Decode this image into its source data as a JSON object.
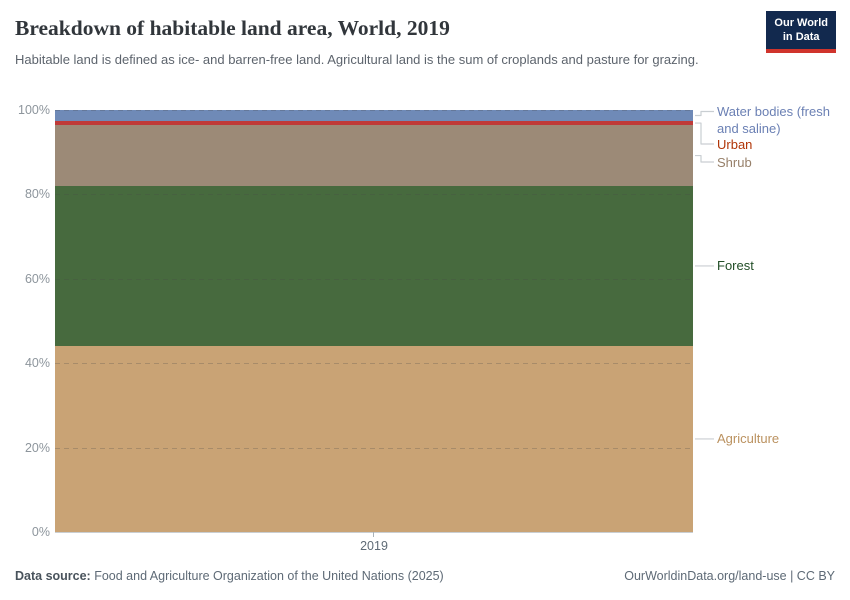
{
  "header": {
    "title": "Breakdown of habitable land area, World, 2019",
    "subtitle": "Habitable land is defined as ice- and barren-free land. Agricultural land is the sum of croplands and pasture for grazing.",
    "logo_line1": "Our World",
    "logo_line2": "in Data",
    "logo_bg_color": "#12294e",
    "logo_accent_color": "#d0342c"
  },
  "chart_data": {
    "type": "bar",
    "stacked": true,
    "title": "Breakdown of habitable land area, World, 2019",
    "categories": [
      "2019"
    ],
    "unit": "%",
    "ylim": [
      0,
      100
    ],
    "yticks": [
      0,
      20,
      40,
      60,
      80,
      100
    ],
    "ytick_suffix": "%",
    "grid": "dashed-horizontal",
    "legend_position": "right-labels",
    "series": [
      {
        "name": "Agriculture",
        "values": [
          44.1
        ],
        "color": "#c9a375",
        "label_color": "#bb9260"
      },
      {
        "name": "Forest",
        "values": [
          37.9
        ],
        "color": "#476a3e",
        "label_color": "#224e27"
      },
      {
        "name": "Shrub",
        "values": [
          14.4
        ],
        "color": "#9c8a77",
        "label_color": "#97806a"
      },
      {
        "name": "Urban",
        "values": [
          1.0
        ],
        "color": "#bf3a38",
        "label_color": "#b13507"
      },
      {
        "name": "Water bodies (fresh and saline)",
        "values": [
          2.6
        ],
        "color": "#6f8ab7",
        "label_color": "#6b80b4"
      }
    ]
  },
  "footer": {
    "source_label": "Data source:",
    "source_text": " Food and Agriculture Organization of the United Nations (2025)",
    "license_text": "OurWorldinData.org/land-use | CC BY"
  }
}
